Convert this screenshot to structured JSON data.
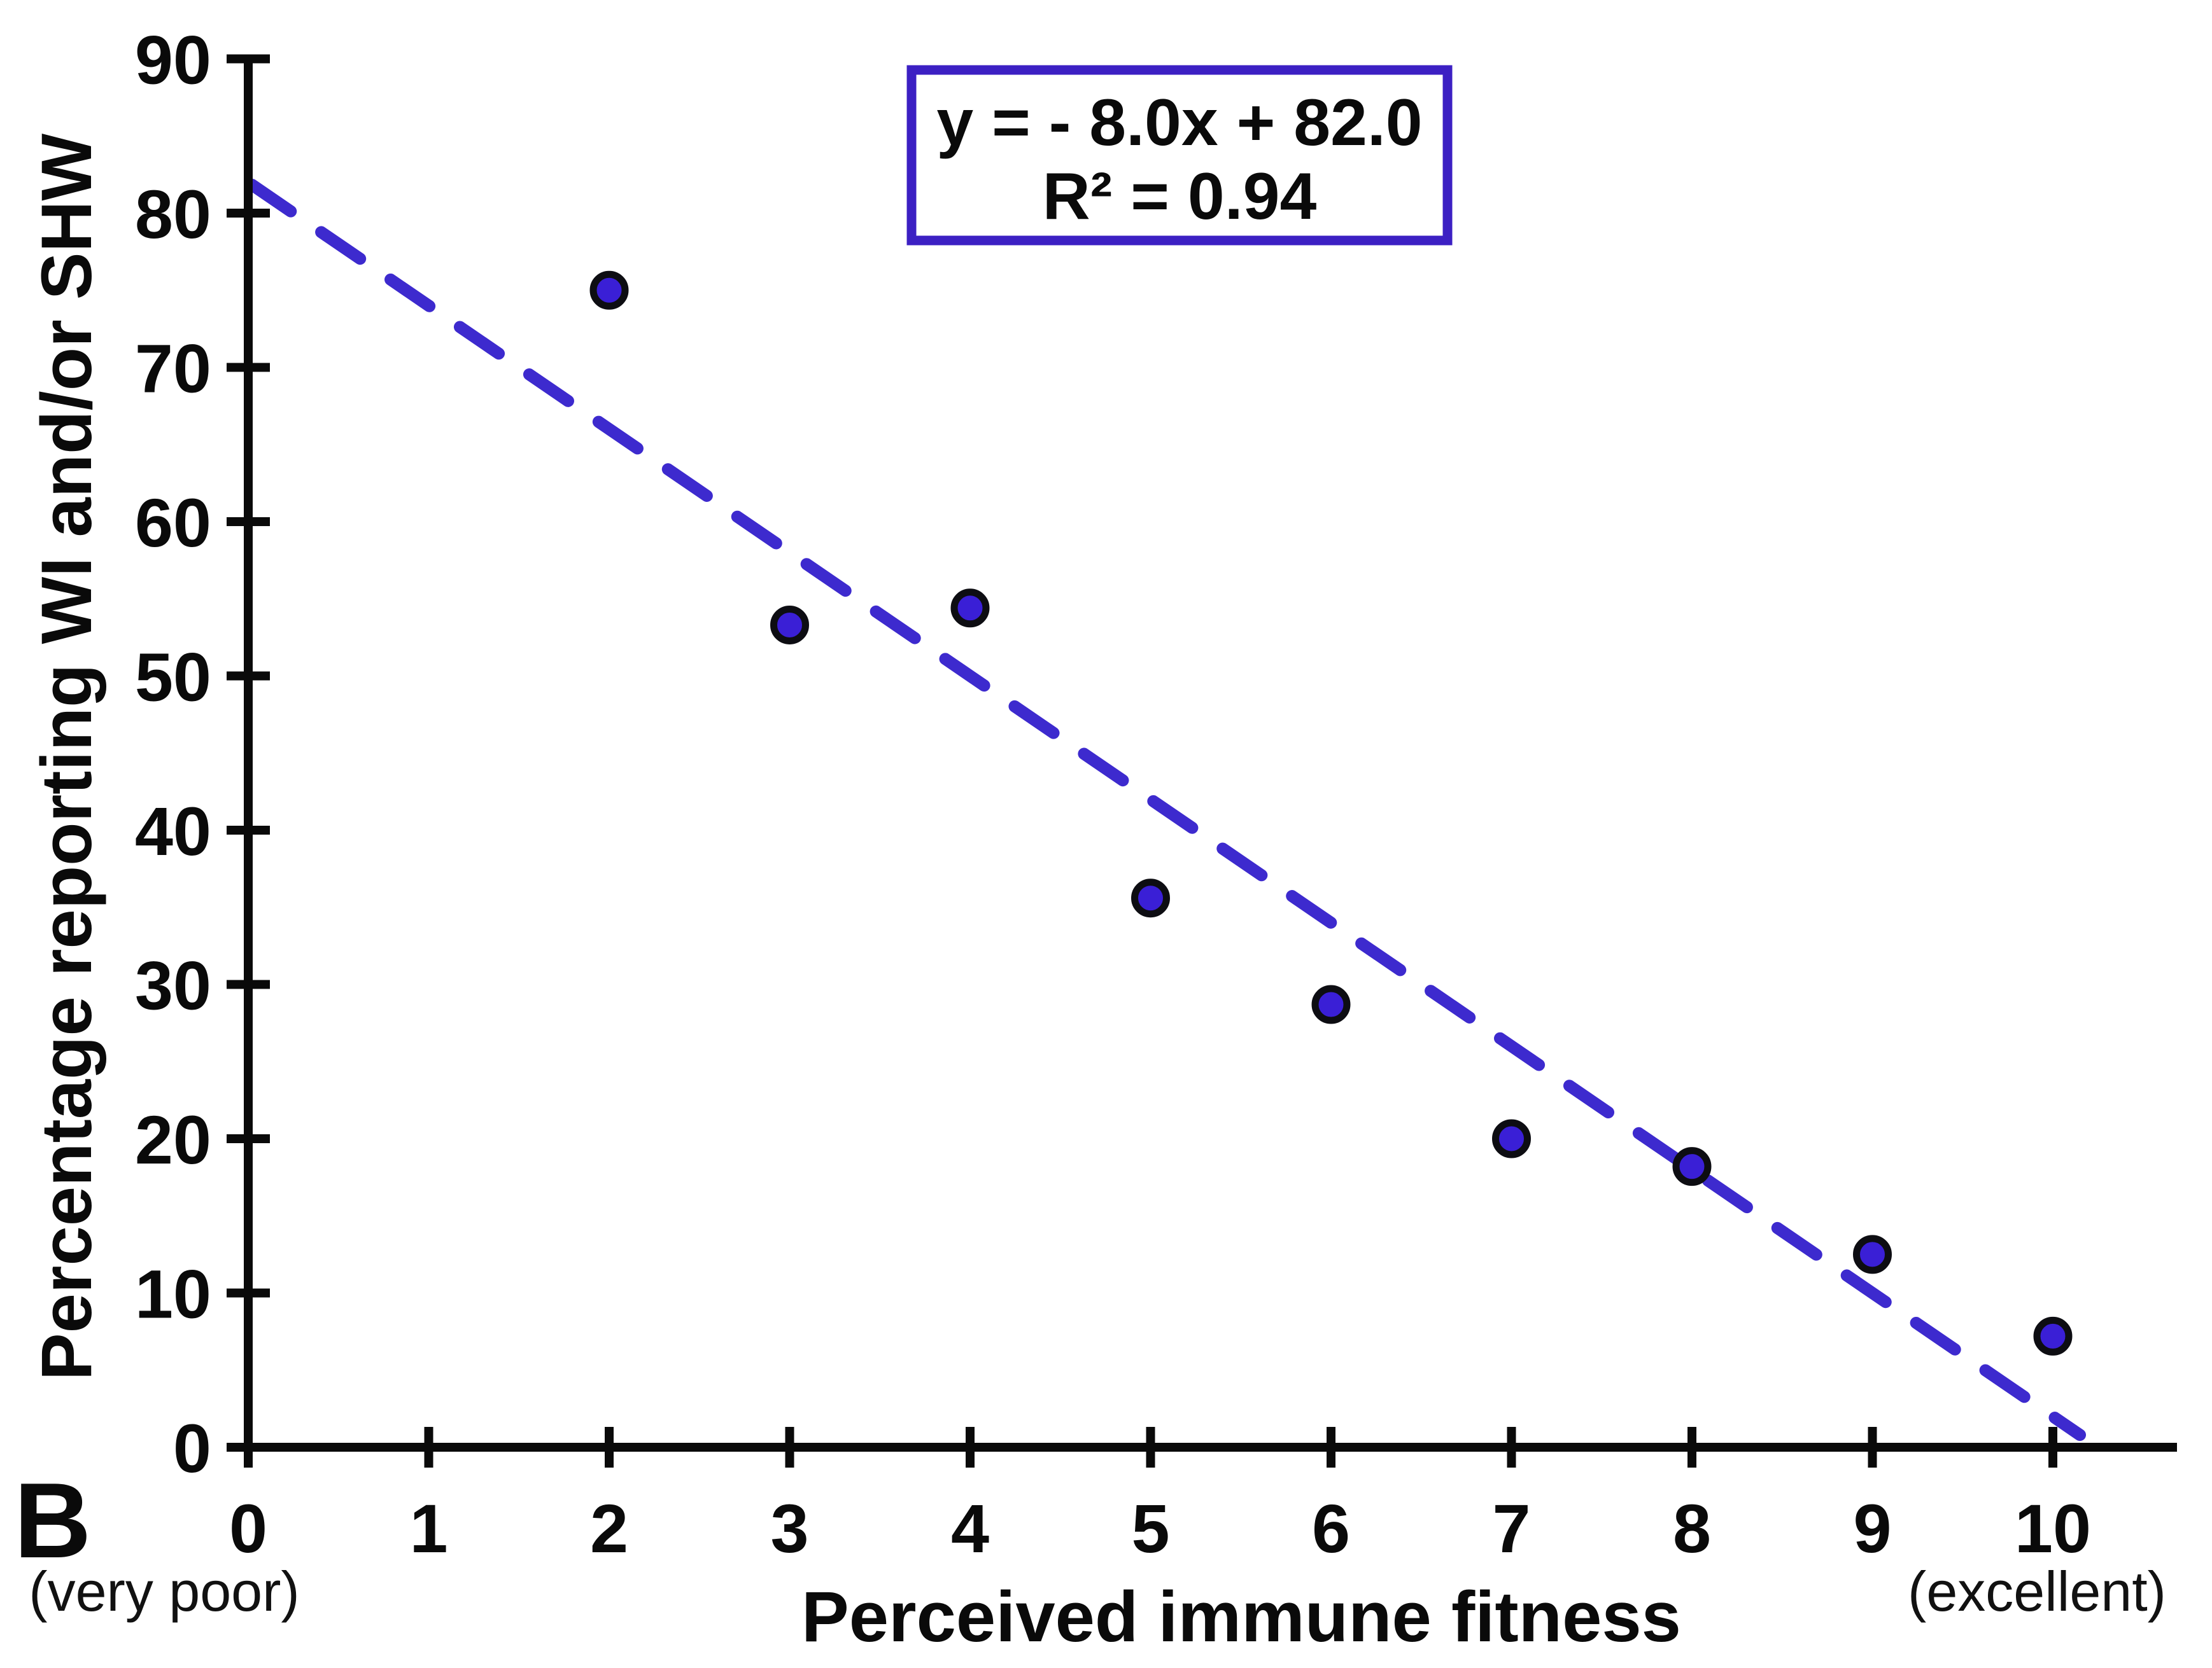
{
  "panel_label": "B",
  "equation_box": {
    "line1": "y = - 8.0x + 82.0",
    "line2": "R² = 0.94",
    "border_color": "#3c20c3"
  },
  "axes": {
    "x": {
      "title": "Perceived immune fitness",
      "min_annotation": "(very poor)",
      "max_annotation": "(excellent)",
      "ticks": [
        0,
        1,
        2,
        3,
        4,
        5,
        6,
        7,
        8,
        9,
        10
      ]
    },
    "y": {
      "title": "Percentage reporting WI and/or SHW",
      "ticks": [
        0,
        10,
        20,
        30,
        40,
        50,
        60,
        70,
        80,
        90
      ]
    }
  },
  "chart_data": {
    "type": "scatter",
    "title": "",
    "xlabel": "Perceived immune fitness",
    "ylabel": "Percentage reporting WI and/or SHW",
    "xlim": [
      0,
      10
    ],
    "ylim": [
      0,
      90
    ],
    "grid": false,
    "x": [
      2,
      3,
      4,
      5,
      6,
      7,
      8,
      9,
      10
    ],
    "y": [
      75.0,
      53.3,
      54.4,
      35.6,
      28.7,
      20.0,
      18.2,
      12.5,
      7.2
    ],
    "trendline": {
      "equation": "y = - 8.0x + 82.0",
      "slope": -8.0,
      "intercept": 82.0,
      "r_squared": 0.94,
      "style": "dashed",
      "x_start": 0.02,
      "x_end": 10.15
    },
    "colors": {
      "marker_fill": "#3a1fd6",
      "marker_stroke": "#0d0d12",
      "trendline": "#3d2ace",
      "axis": "#0a0a0a"
    }
  }
}
